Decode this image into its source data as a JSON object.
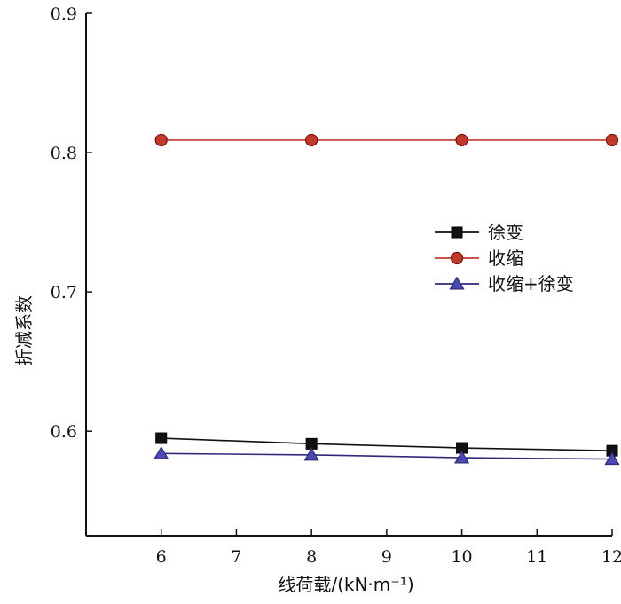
{
  "chart_data": {
    "type": "line",
    "title": "",
    "xlabel": "线荷载/(kN·m⁻¹)",
    "ylabel": "折减系数",
    "x": [
      6,
      8,
      10,
      12
    ],
    "xlim": [
      5,
      12
    ],
    "ylim": [
      0.525,
      0.9
    ],
    "x_ticks": [
      "6",
      "7",
      "8",
      "9",
      "10",
      "11",
      "12"
    ],
    "y_ticks": [
      "0.6",
      "0.7",
      "0.8",
      "0.9"
    ],
    "grid": false,
    "legend_position": "right",
    "series": [
      {
        "name": "徐变",
        "values": [
          0.595,
          0.591,
          0.588,
          0.586
        ],
        "color": "#111111",
        "marker": "square"
      },
      {
        "name": "收缩",
        "values": [
          0.809,
          0.809,
          0.809,
          0.809
        ],
        "color": "#c0392b",
        "marker": "circle"
      },
      {
        "name": "收缩+徐变",
        "values": [
          0.584,
          0.583,
          0.581,
          0.58
        ],
        "color": "#2e2a7a",
        "marker": "triangle"
      }
    ]
  }
}
